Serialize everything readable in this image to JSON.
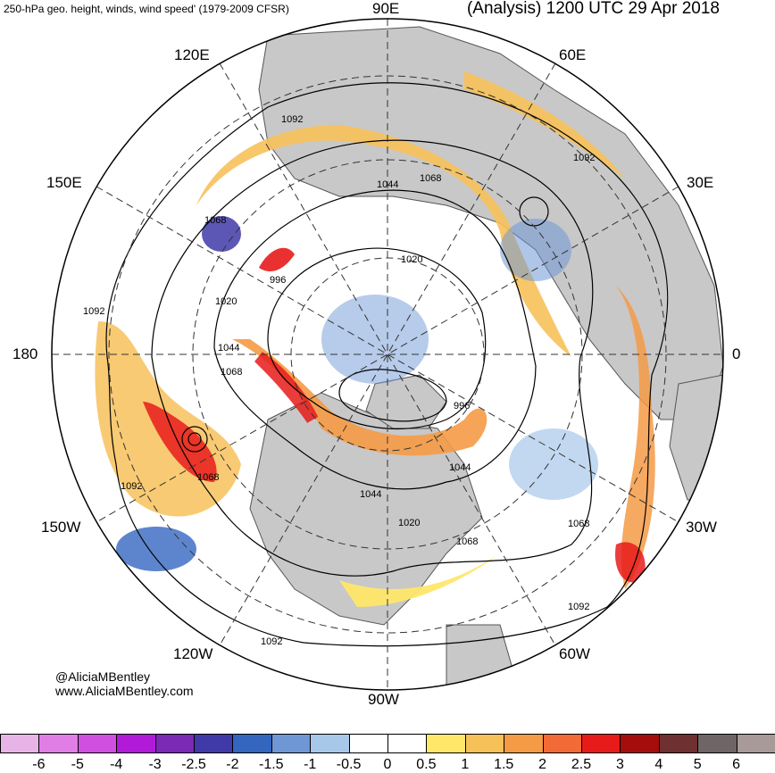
{
  "header": {
    "left_title": "250-hPa geo. height, winds, wind speed' (1979-2009 CFSR)",
    "right_title": "(Analysis) 1200 UTC 29 Apr 2018"
  },
  "longitude_labels": {
    "e90": "90E",
    "e60": "60E",
    "e30": "30E",
    "zero": "0",
    "w30": "30W",
    "w60": "60W",
    "w90": "90W",
    "w120": "120W",
    "w150": "150W",
    "d180": "180",
    "e150": "150E",
    "e120": "120E"
  },
  "contour_labels": [
    "1092",
    "1092",
    "1092",
    "1092",
    "1092",
    "1092",
    "1068",
    "1068",
    "1068",
    "1068",
    "1068",
    "1068",
    "1044",
    "1044",
    "1044",
    "1044",
    "1020",
    "1020",
    "1020",
    "996",
    "996"
  ],
  "credit": {
    "handle": "@AliciaMBentley",
    "site": "www.AliciaMBentley.com"
  },
  "colorbar": {
    "labels": [
      "-6",
      "-5",
      "-4",
      "-3",
      "-2.5",
      "-2",
      "-1.5",
      "-1",
      "-0.5",
      "0",
      "0.5",
      "1",
      "1.5",
      "2",
      "2.5",
      "3",
      "4",
      "5",
      "6"
    ],
    "colors": [
      "#e8b4e8",
      "#e07ee6",
      "#d14fe0",
      "#b01ad8",
      "#7a2ab4",
      "#3f3aa8",
      "#3466c0",
      "#6f97d6",
      "#a8c8ea",
      "#ffffff",
      "#ffffff",
      "#ffe76a",
      "#f7c15a",
      "#f59a45",
      "#f26a35",
      "#e81b1b",
      "#a50d0d",
      "#6e3030",
      "#6f6466",
      "#a89a98"
    ]
  },
  "colors": {
    "land": "#c8c8c8",
    "coast": "#555555",
    "contour": "#000000"
  }
}
